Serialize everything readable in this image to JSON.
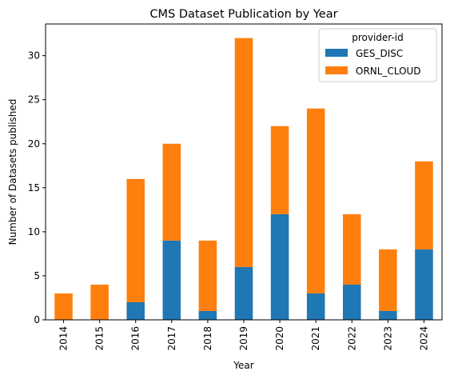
{
  "chart_data": {
    "type": "bar",
    "stacked": true,
    "title": "CMS Dataset Publication by Year",
    "xlabel": "Year",
    "ylabel": "Number of Datasets published",
    "categories": [
      "2014",
      "2015",
      "2016",
      "2017",
      "2018",
      "2019",
      "2020",
      "2021",
      "2022",
      "2023",
      "2024"
    ],
    "series": [
      {
        "name": "GES_DISC",
        "color": "#1f77b4",
        "values": [
          0,
          0,
          2,
          9,
          1,
          6,
          12,
          3,
          4,
          1,
          8
        ]
      },
      {
        "name": "ORNL_CLOUD",
        "color": "#ff7f0e",
        "values": [
          3,
          4,
          14,
          11,
          8,
          26,
          10,
          21,
          8,
          7,
          10
        ]
      }
    ],
    "ylim": [
      0,
      33.6
    ],
    "yticks": [
      0,
      5,
      10,
      15,
      20,
      25,
      30
    ],
    "grid": false,
    "legend": {
      "title": "provider-id",
      "placement": "top-right"
    }
  }
}
